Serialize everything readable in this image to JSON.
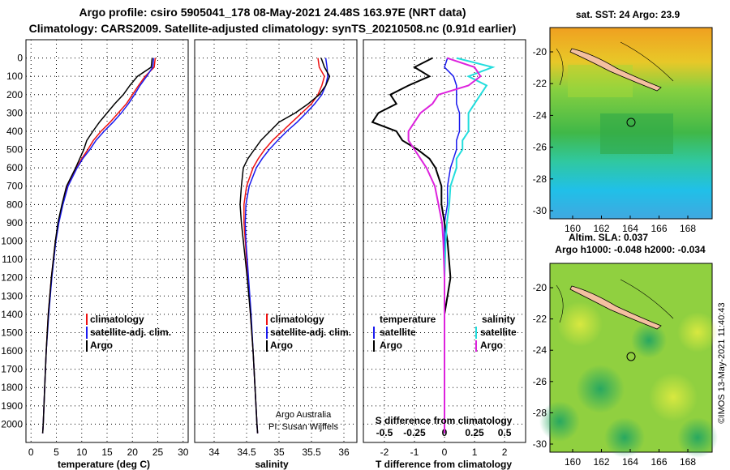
{
  "title_line1": "Argo profile: csiro 5905041_178 08-May-2021 24.48S 163.97E (NRT data)",
  "title_line2": "Climatology: CARS2009. Satellite-adjusted climatology: synTS_20210508.nc (0.91d earlier)",
  "depth_ticks": [
    0,
    100,
    200,
    300,
    400,
    500,
    600,
    700,
    800,
    900,
    1000,
    1100,
    1200,
    1300,
    1400,
    1500,
    1600,
    1700,
    1800,
    1900,
    2000
  ],
  "legends": {
    "temperature": [
      "climatology",
      "satellite-adj. clim.",
      "Argo"
    ],
    "salinity": [
      "climatology",
      "satellite-adj. clim.",
      "Argo"
    ],
    "difference": {
      "t_heading": "temperature",
      "t_items": [
        "satellite",
        "Argo"
      ],
      "s_heading": "salinity",
      "s_items": [
        "satellite",
        "Argo"
      ]
    }
  },
  "credits": [
    "Argo Australia",
    "PI: Susan Wijffels"
  ],
  "watermark": "©IMOS 13-May-2021 11:40:43",
  "colors": {
    "climatology": "#ee1111",
    "satellite": "#1a1aee",
    "argo": "#000000",
    "s_satellite": "#22dddd",
    "s_argo": "#dd22dd"
  },
  "maps": {
    "sst": {
      "title": "sat. SST: 24 Argo: 23.9",
      "lat_ticks": [
        "-20",
        "-22",
        "-24",
        "-26",
        "-28",
        "-30"
      ],
      "lon_ticks": [
        "160",
        "162",
        "164",
        "166",
        "168"
      ]
    },
    "sla": {
      "title": "Altim. SLA: 0.037",
      "subtitle": "Argo h1000: -0.048 h2000: -0.034",
      "lat_ticks": [
        "-20",
        "-22",
        "-24",
        "-26",
        "-28",
        "-30"
      ],
      "lon_ticks": [
        "160",
        "162",
        "164",
        "166",
        "168"
      ]
    }
  },
  "chart_data": [
    {
      "type": "line",
      "title": "",
      "xlabel": "temperature (deg C)",
      "ylabel": "depth",
      "xlim": [
        -1,
        31
      ],
      "ylim": [
        2100,
        0
      ],
      "xticks": [
        0,
        5,
        10,
        15,
        20,
        25,
        30
      ],
      "depth": [
        0,
        50,
        100,
        150,
        200,
        250,
        300,
        350,
        400,
        450,
        500,
        550,
        600,
        700,
        800,
        900,
        1000,
        1200,
        1400,
        1600,
        1800,
        2000,
        2050
      ],
      "series": [
        {
          "name": "climatology",
          "values": [
            24.5,
            24.3,
            22.5,
            21.2,
            20.0,
            18.8,
            17.2,
            15.6,
            13.8,
            12.3,
            11.2,
            10.0,
            9.0,
            7.2,
            6.2,
            5.4,
            4.8,
            4.0,
            3.4,
            3.0,
            2.7,
            2.4,
            2.3
          ]
        },
        {
          "name": "satellite-adj. clim.",
          "values": [
            24.2,
            24.0,
            22.8,
            21.5,
            20.4,
            19.2,
            17.8,
            16.2,
            14.4,
            12.8,
            11.6,
            10.2,
            9.1,
            7.3,
            6.3,
            5.5,
            4.9,
            4.1,
            3.5,
            3.0,
            2.7,
            2.4,
            2.3
          ]
        },
        {
          "name": "Argo",
          "values": [
            23.9,
            23.7,
            21.0,
            19.5,
            18.2,
            16.5,
            15.0,
            13.5,
            12.2,
            11.0,
            10.4,
            9.6,
            8.8,
            7.0,
            6.1,
            5.3,
            4.8,
            4.0,
            3.4,
            3.0,
            2.7,
            2.4,
            2.3
          ]
        }
      ]
    },
    {
      "type": "line",
      "title": "",
      "xlabel": "salinity",
      "ylabel": "depth",
      "xlim": [
        33.7,
        36.2
      ],
      "ylim": [
        2100,
        0
      ],
      "xticks": [
        34,
        34.5,
        35,
        35.5,
        36
      ],
      "depth": [
        0,
        50,
        100,
        150,
        200,
        250,
        300,
        350,
        400,
        450,
        500,
        550,
        600,
        700,
        800,
        900,
        1000,
        1200,
        1400,
        1600,
        1800,
        2000,
        2050
      ],
      "series": [
        {
          "name": "climatology",
          "values": [
            35.6,
            35.62,
            35.7,
            35.66,
            35.6,
            35.5,
            35.35,
            35.2,
            35.05,
            34.9,
            34.78,
            34.68,
            34.6,
            34.5,
            34.46,
            34.46,
            34.48,
            34.52,
            34.56,
            34.6,
            34.63,
            34.66,
            34.67
          ]
        },
        {
          "name": "satellite-adj. clim.",
          "values": [
            35.72,
            35.74,
            35.75,
            35.72,
            35.66,
            35.55,
            35.42,
            35.28,
            35.12,
            34.98,
            34.85,
            34.74,
            34.65,
            34.54,
            34.49,
            34.48,
            34.49,
            34.53,
            34.57,
            34.6,
            34.63,
            34.66,
            34.67
          ]
        },
        {
          "name": "Argo",
          "values": [
            35.65,
            35.7,
            35.78,
            35.72,
            35.62,
            35.45,
            35.25,
            35.0,
            34.86,
            34.72,
            34.62,
            34.52,
            34.45,
            34.42,
            34.4,
            34.42,
            34.45,
            34.51,
            34.56,
            34.6,
            34.63,
            34.66,
            34.67
          ]
        }
      ]
    },
    {
      "type": "line",
      "title": "",
      "xlabel": "T difference from climatology",
      "s_xlabel": "S difference from climatology",
      "ylabel": "depth",
      "xlim": [
        -2.7,
        2.7
      ],
      "ylim": [
        2100,
        0
      ],
      "xticks": [
        -2,
        -1,
        0,
        1,
        2
      ],
      "s_xticks_label": [
        "-0.5",
        "-0.25",
        "0",
        "0.25",
        "0.5"
      ],
      "depth": [
        0,
        50,
        100,
        150,
        200,
        250,
        300,
        350,
        400,
        450,
        500,
        550,
        600,
        700,
        800,
        900,
        1000,
        1200,
        1400,
        1600,
        1800,
        2000,
        2050
      ],
      "series": [
        {
          "name": "T satellite",
          "values": [
            0.1,
            0.0,
            0.3,
            0.4,
            0.4,
            0.4,
            0.5,
            0.5,
            0.5,
            0.4,
            0.4,
            0.3,
            0.2,
            0.1,
            0.1,
            0.0,
            0.0,
            0.0,
            0.0,
            0.0,
            0.0,
            0.0,
            0.0
          ]
        },
        {
          "name": "T Argo",
          "values": [
            -0.4,
            -1.0,
            -0.5,
            -1.2,
            -1.8,
            -1.6,
            -2.2,
            -2.4,
            -1.6,
            -1.4,
            -0.9,
            -0.5,
            -0.3,
            -0.1,
            -0.1,
            0.0,
            0.1,
            0.2,
            0.0,
            0.0,
            0.0,
            0.0,
            0.0
          ]
        },
        {
          "name": "S satellite",
          "values": [
            0.1,
            0.4,
            0.2,
            0.35,
            0.3,
            0.25,
            0.2,
            0.2,
            0.2,
            0.15,
            0.15,
            0.1,
            0.1,
            0.05,
            0.04,
            0.02,
            0.01,
            0.0,
            0.0,
            0.0,
            0.0,
            0.0,
            0.0
          ]
        },
        {
          "name": "S Argo",
          "values": [
            0.02,
            0.25,
            0.3,
            0.2,
            -0.05,
            -0.1,
            -0.2,
            -0.25,
            -0.3,
            -0.3,
            -0.25,
            -0.2,
            -0.15,
            -0.08,
            -0.05,
            -0.02,
            -0.01,
            0.0,
            0.0,
            0.0,
            0.0,
            0.0,
            0.0
          ]
        }
      ]
    }
  ]
}
